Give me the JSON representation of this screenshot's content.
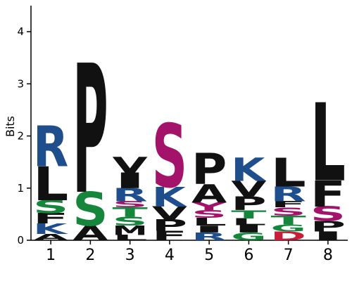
{
  "chart_data": {
    "type": "sequence-logo",
    "title": "",
    "ylabel": "Bits",
    "xlabel": "",
    "ylim": [
      0,
      4.5
    ],
    "yticks": [
      0,
      1,
      2,
      3,
      4
    ],
    "positions": [
      "1",
      "2",
      "3",
      "4",
      "5",
      "6",
      "7",
      "8"
    ],
    "colors": {
      "hydrophobic": "#111111",
      "basic": "#1f4e8c",
      "polar": "#15863c",
      "acidic": "#c81e3a",
      "ST": "#a4136a"
    },
    "stacks": [
      [
        {
          "letter": "A",
          "height": 0.12,
          "class": "hydrophobic"
        },
        {
          "letter": "K",
          "height": 0.2,
          "class": "basic"
        },
        {
          "letter": "F",
          "height": 0.2,
          "class": "hydrophobic"
        },
        {
          "letter": "S",
          "height": 0.25,
          "class": "polar"
        },
        {
          "letter": "L",
          "height": 0.65,
          "class": "hydrophobic"
        },
        {
          "letter": "R",
          "height": 0.78,
          "class": "basic"
        }
      ],
      [
        {
          "letter": "A",
          "height": 0.28,
          "class": "hydrophobic"
        },
        {
          "letter": "S",
          "height": 0.65,
          "class": "polar"
        },
        {
          "letter": "P",
          "height": 2.48,
          "class": "hydrophobic"
        }
      ],
      [
        {
          "letter": "L",
          "height": 0.1,
          "class": "hydrophobic"
        },
        {
          "letter": "M",
          "height": 0.18,
          "class": "hydrophobic"
        },
        {
          "letter": "S",
          "height": 0.17,
          "class": "polar"
        },
        {
          "letter": "T",
          "height": 0.18,
          "class": "polar"
        },
        {
          "letter": "S",
          "height": 0.12,
          "class": "ST"
        },
        {
          "letter": "R",
          "height": 0.25,
          "class": "basic"
        },
        {
          "letter": "I",
          "height": 0.3,
          "class": "hydrophobic"
        },
        {
          "letter": "V",
          "height": 0.3,
          "class": "hydrophobic"
        }
      ],
      [
        {
          "letter": "F",
          "height": 0.18,
          "class": "hydrophobic"
        },
        {
          "letter": "P",
          "height": 0.22,
          "class": "hydrophobic"
        },
        {
          "letter": "V",
          "height": 0.25,
          "class": "hydrophobic"
        },
        {
          "letter": "K",
          "height": 0.38,
          "class": "basic"
        },
        {
          "letter": "S",
          "height": 1.22,
          "class": "ST"
        }
      ],
      [
        {
          "letter": "R",
          "height": 0.15,
          "class": "basic"
        },
        {
          "letter": "I",
          "height": 0.13,
          "class": "hydrophobic"
        },
        {
          "letter": "L",
          "height": 0.15,
          "class": "hydrophobic"
        },
        {
          "letter": "S",
          "height": 0.15,
          "class": "ST"
        },
        {
          "letter": "Y",
          "height": 0.15,
          "class": "ST"
        },
        {
          "letter": "A",
          "height": 0.35,
          "class": "hydrophobic"
        },
        {
          "letter": "P",
          "height": 0.6,
          "class": "hydrophobic"
        }
      ],
      [
        {
          "letter": "G",
          "height": 0.15,
          "class": "polar"
        },
        {
          "letter": "I",
          "height": 0.14,
          "class": "hydrophobic"
        },
        {
          "letter": "L",
          "height": 0.13,
          "class": "hydrophobic"
        },
        {
          "letter": "T",
          "height": 0.16,
          "class": "polar"
        },
        {
          "letter": "P",
          "height": 0.26,
          "class": "hydrophobic"
        },
        {
          "letter": "V",
          "height": 0.3,
          "class": "hydrophobic"
        },
        {
          "letter": "K",
          "height": 0.45,
          "class": "basic"
        }
      ],
      [
        {
          "letter": "D",
          "height": 0.17,
          "class": "acidic"
        },
        {
          "letter": "G",
          "height": 0.13,
          "class": "polar"
        },
        {
          "letter": "T",
          "height": 0.17,
          "class": "polar"
        },
        {
          "letter": "S",
          "height": 0.16,
          "class": "ST"
        },
        {
          "letter": "F",
          "height": 0.12,
          "class": "hydrophobic"
        },
        {
          "letter": "R",
          "height": 0.28,
          "class": "basic"
        },
        {
          "letter": "L",
          "height": 0.55,
          "class": "hydrophobic"
        }
      ],
      [
        {
          "letter": "I",
          "height": 0.17,
          "class": "hydrophobic"
        },
        {
          "letter": "P",
          "height": 0.2,
          "class": "hydrophobic"
        },
        {
          "letter": "S",
          "height": 0.28,
          "class": "ST"
        },
        {
          "letter": "F",
          "height": 0.5,
          "class": "hydrophobic"
        },
        {
          "letter": "L",
          "height": 1.5,
          "class": "hydrophobic"
        }
      ]
    ]
  }
}
